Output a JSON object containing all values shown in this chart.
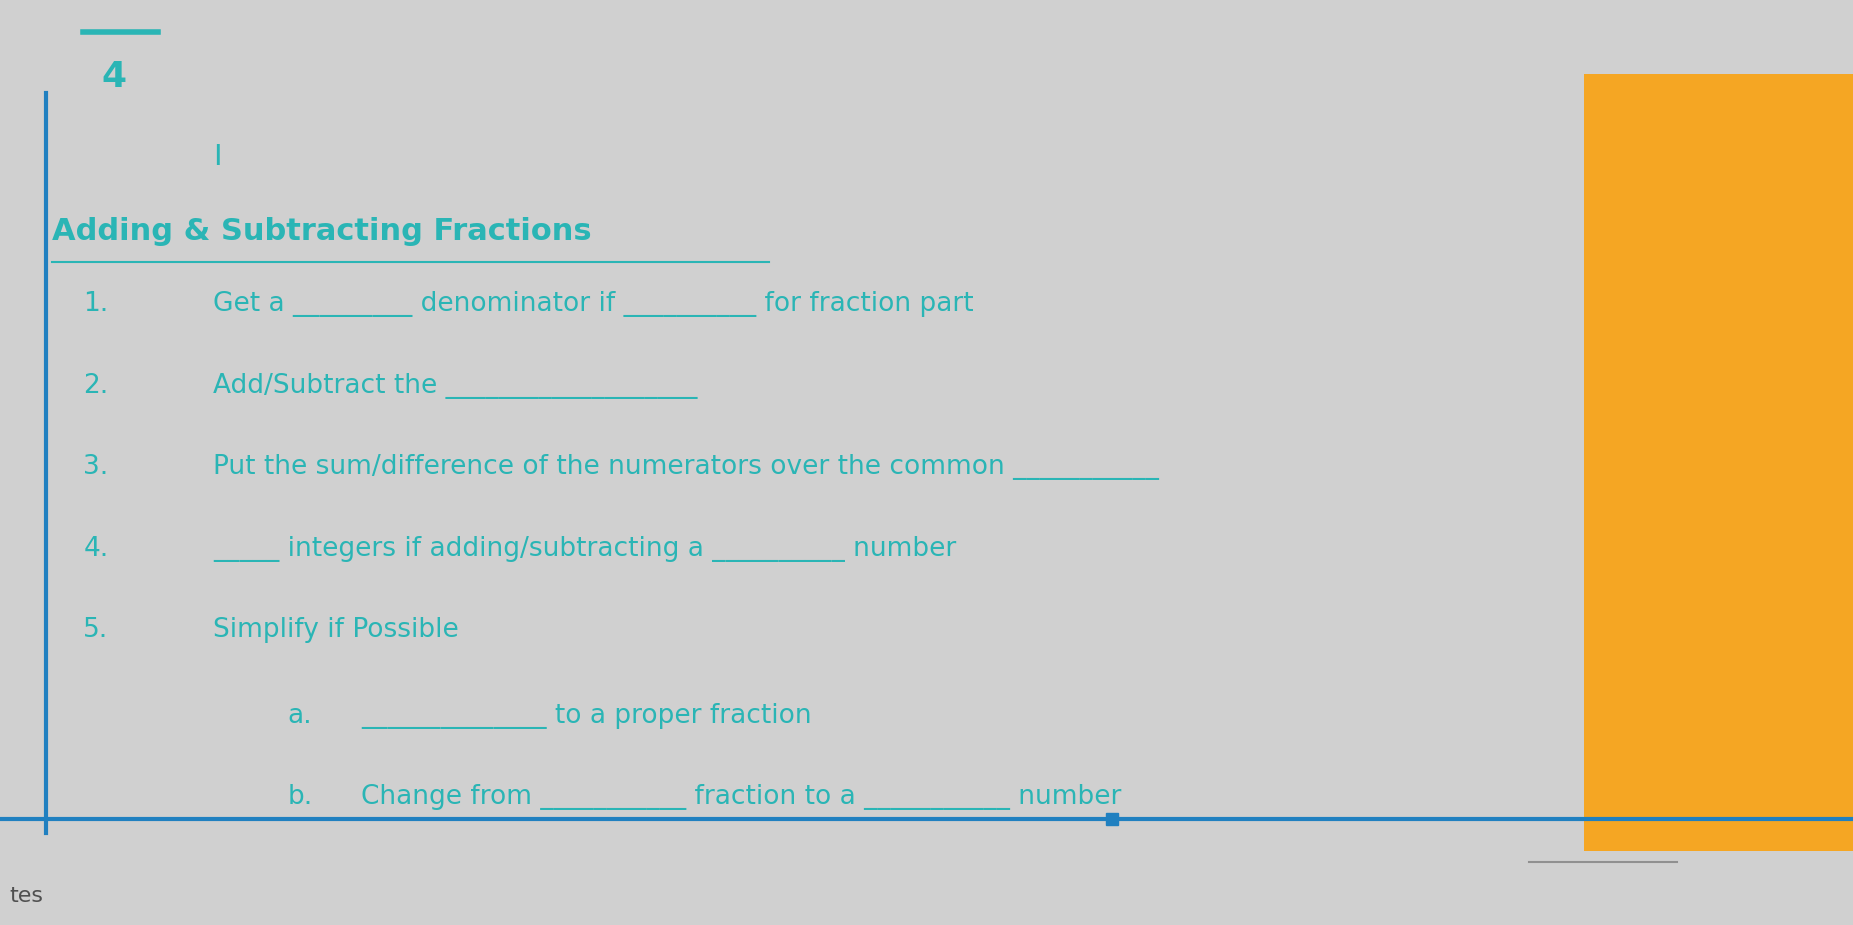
{
  "bg_color": "#d0d0d0",
  "text_color": "#2ab5b5",
  "title": "Adding & Subtracting Fractions",
  "fraction_number": "4",
  "cursor": "I",
  "line1": "Get a _________ denominator if __________ for fraction part",
  "line2": "Add/Subtract the ___________________",
  "line3": "Put the sum/difference of the numerators over the common ___________",
  "line4": "_____ integers if adding/subtracting a __________ number",
  "line5": "Simplify if Possible",
  "line5a": "______________ to a proper fraction",
  "line5b": "Change from ___________ fraction to a ___________ number",
  "bottom_label": "tes",
  "border_color": "#2080c0",
  "orange_color": "#f5a623",
  "title_fontsize": 22,
  "body_fontsize": 19,
  "number_fontsize": 26
}
